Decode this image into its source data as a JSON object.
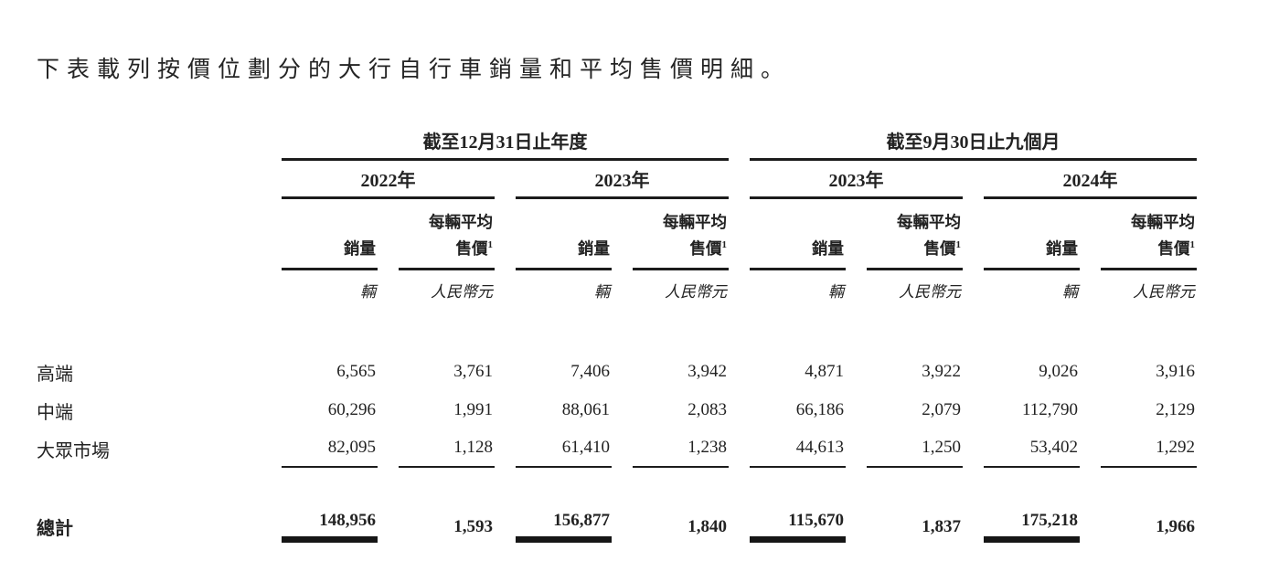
{
  "page": {
    "intro_text": "下表載列按價位劃分的大行自行車銷量和平均售價明細。"
  },
  "table": {
    "groups": [
      {
        "label": "截至12月31日止年度",
        "years": [
          "2022年",
          "2023年"
        ]
      },
      {
        "label": "截至9月30日止九個月",
        "years": [
          "2023年",
          "2024年"
        ]
      }
    ],
    "col_headers": {
      "volume": "銷量",
      "asp_line1": "每輛平均",
      "asp_line2": "售價",
      "asp_note_ref": "1"
    },
    "units": {
      "volume": "輛",
      "asp": "人民幣元"
    },
    "rows": [
      {
        "label": "高端",
        "values": [
          "6,565",
          "3,761",
          "7,406",
          "3,942",
          "4,871",
          "3,922",
          "9,026",
          "3,916"
        ]
      },
      {
        "label": "中端",
        "values": [
          "60,296",
          "1,991",
          "88,061",
          "2,083",
          "66,186",
          "2,079",
          "112,790",
          "2,129"
        ]
      },
      {
        "label": "大眾市場",
        "values": [
          "82,095",
          "1,128",
          "61,410",
          "1,238",
          "44,613",
          "1,250",
          "53,402",
          "1,292"
        ]
      }
    ],
    "total": {
      "label": "總計",
      "values": [
        "148,956",
        "1,593",
        "156,877",
        "1,840",
        "115,670",
        "1,837",
        "175,218",
        "1,966"
      ]
    }
  }
}
